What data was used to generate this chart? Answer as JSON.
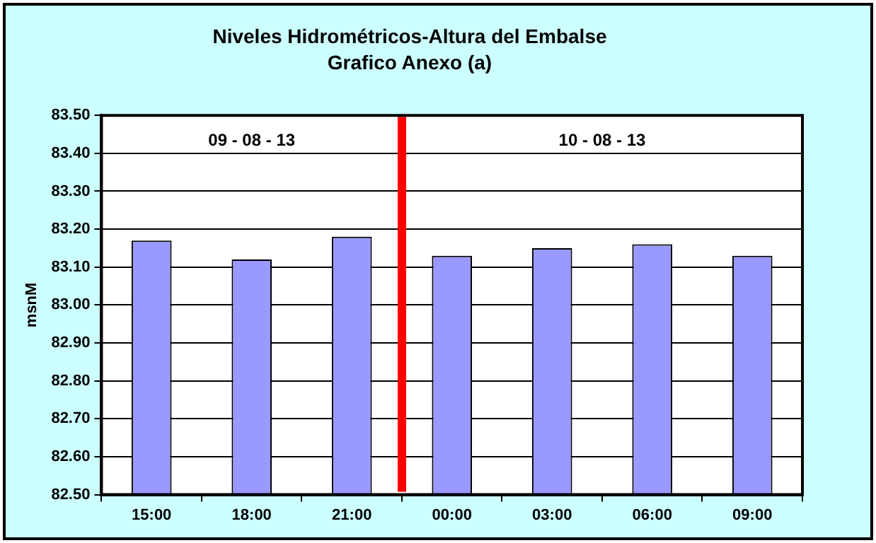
{
  "chart_data": {
    "type": "bar",
    "title": "Niveles Hidrométricos-Altura del Embalse",
    "subtitle": "Grafico Anexo (a)",
    "ylabel": "msnM",
    "categories": [
      "15:00",
      "18:00",
      "21:00",
      "00:00",
      "03:00",
      "06:00",
      "09:00"
    ],
    "values": [
      83.17,
      83.12,
      83.18,
      83.13,
      83.15,
      83.16,
      83.13
    ],
    "color": "#9999ff",
    "ylim": [
      82.5,
      83.5
    ],
    "yticks": [
      {
        "value": 82.5,
        "label": "82.50"
      },
      {
        "value": 82.6,
        "label": "82.60"
      },
      {
        "value": 82.7,
        "label": "82.70"
      },
      {
        "value": 82.8,
        "label": "82.80"
      },
      {
        "value": 82.9,
        "label": "82.90"
      },
      {
        "value": 83.0,
        "label": "83.00"
      },
      {
        "value": 83.1,
        "label": "83.10"
      },
      {
        "value": 83.2,
        "label": "83.20"
      },
      {
        "value": 83.3,
        "label": "83.30"
      },
      {
        "value": 83.4,
        "label": "83.40"
      },
      {
        "value": 83.5,
        "label": "83.50"
      }
    ],
    "grid": "y",
    "legend": false,
    "bands": [
      {
        "axis": "x",
        "from": "21:00",
        "to": "00:00",
        "color": "#ff0000"
      }
    ],
    "annotations": [
      "09 - 08 - 13",
      "10 - 08 - 13"
    ]
  }
}
